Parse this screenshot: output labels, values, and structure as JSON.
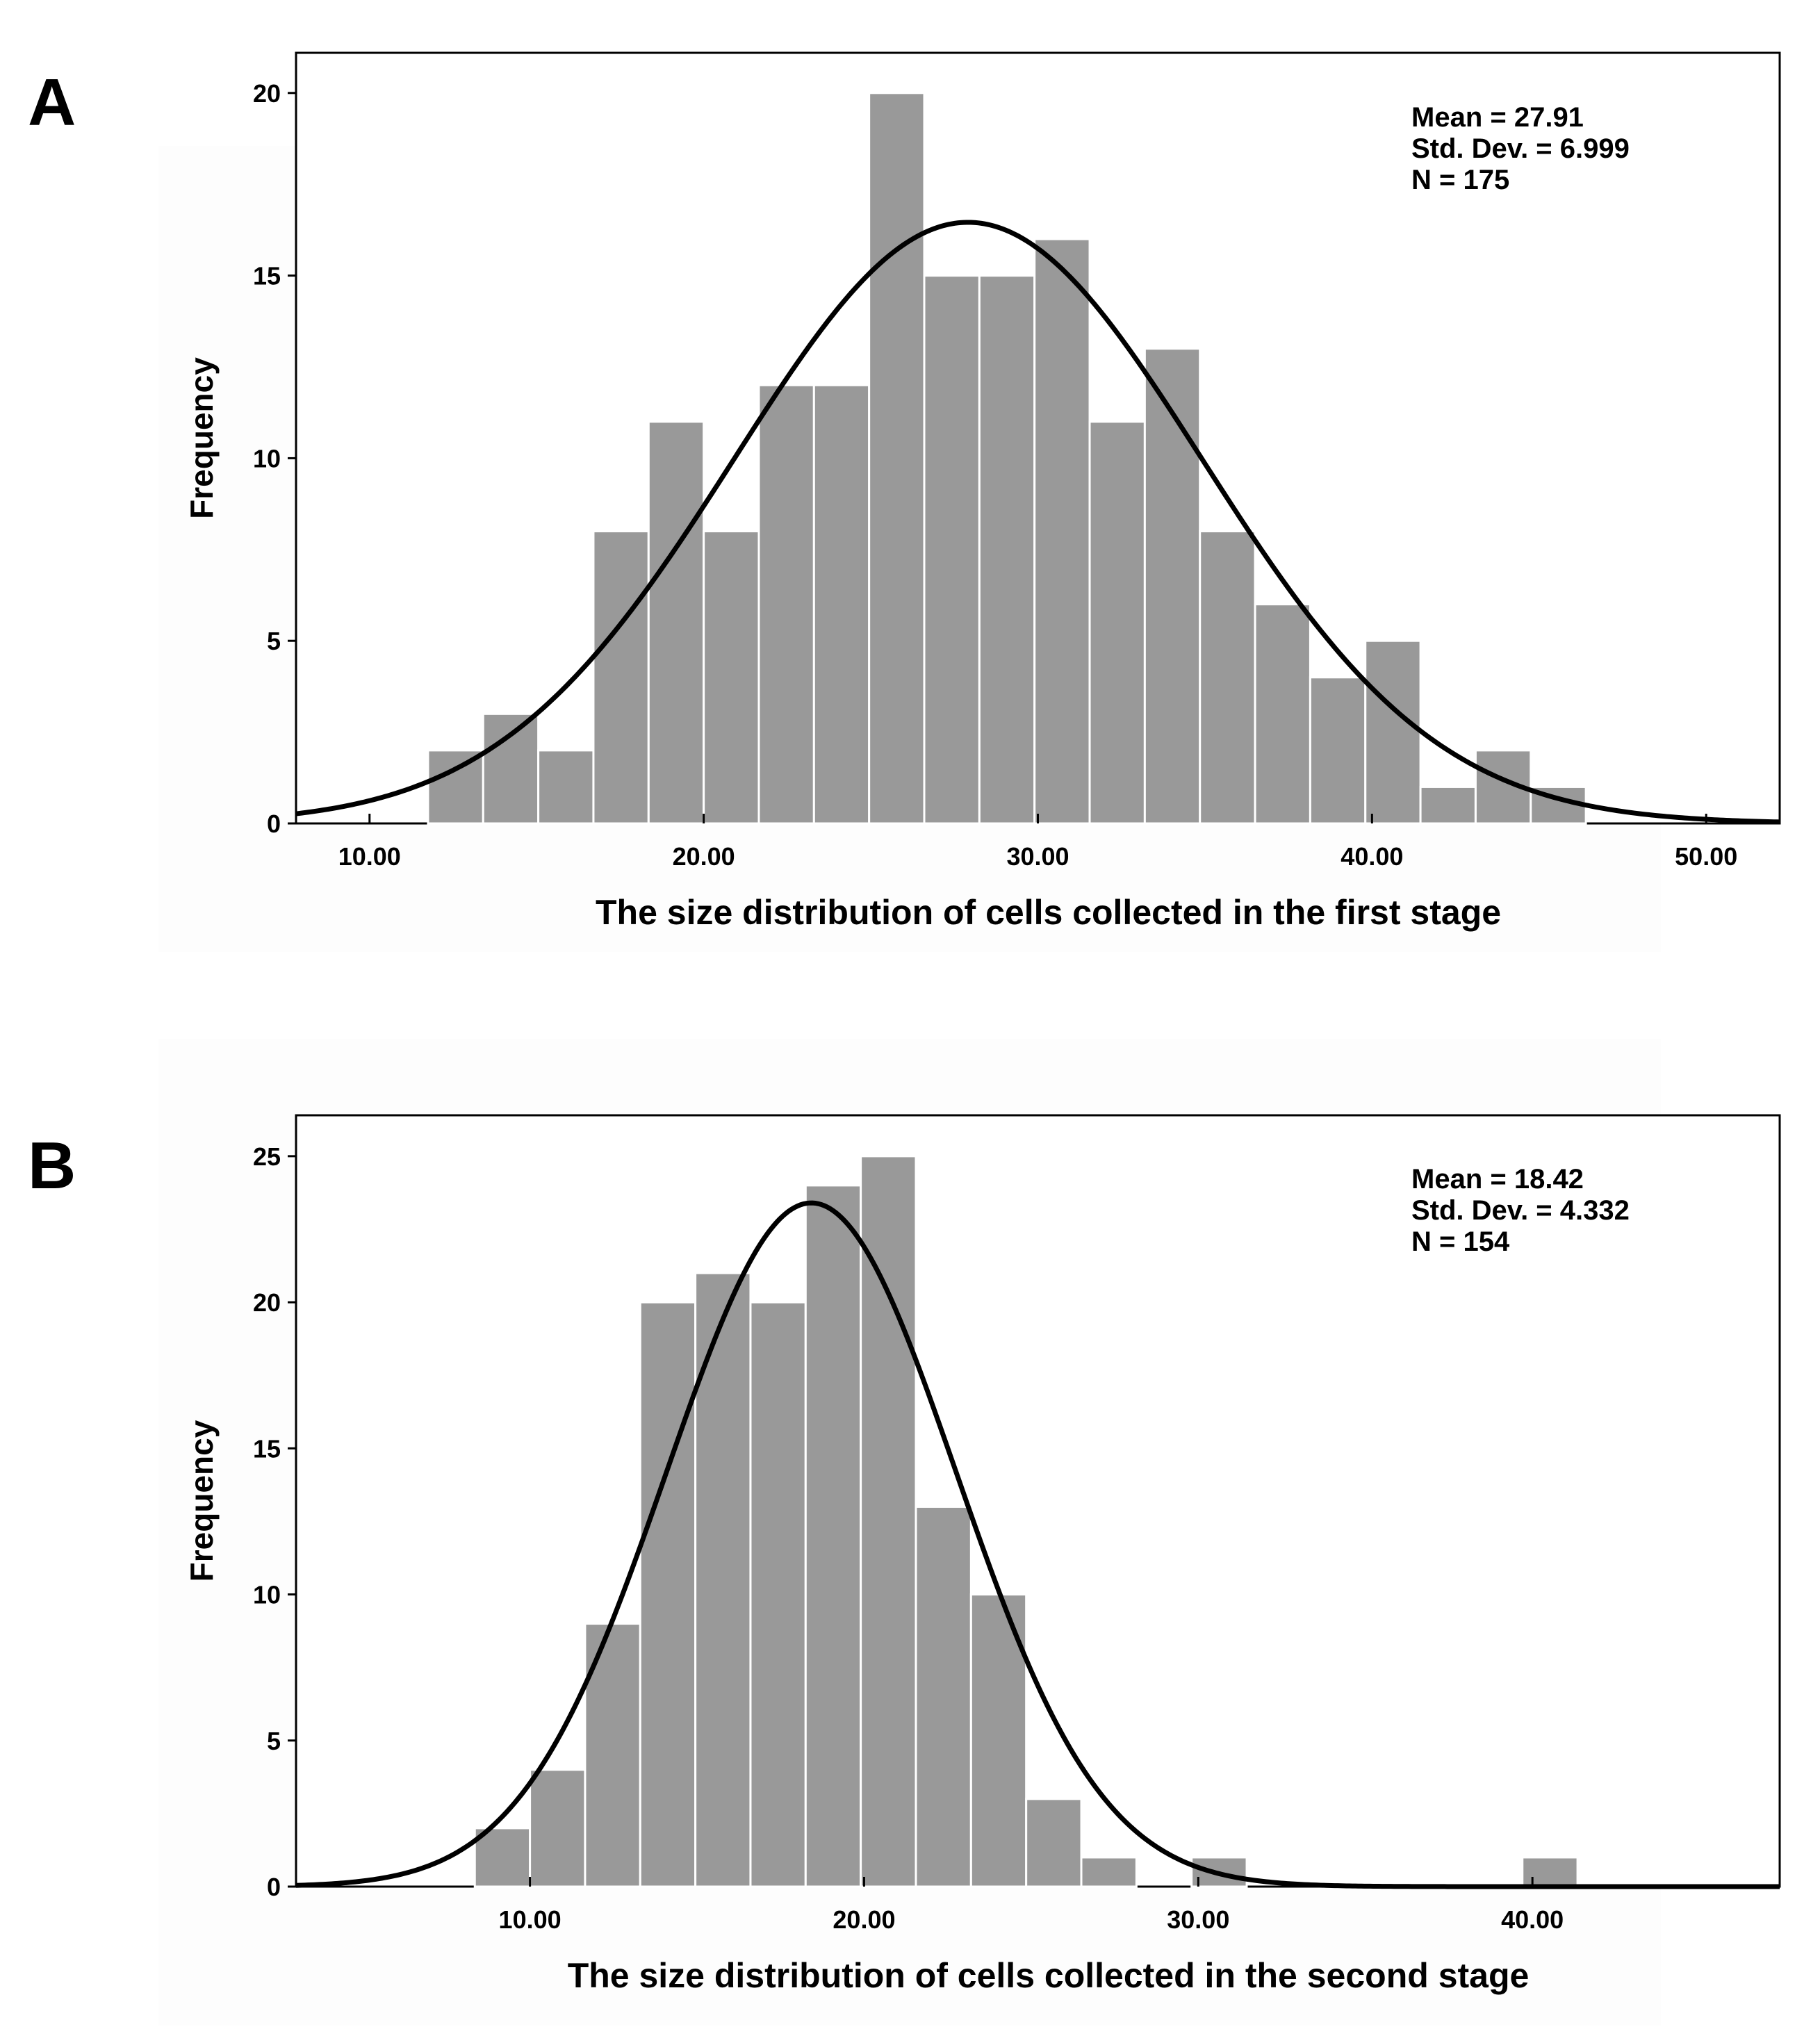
{
  "chart_data": [
    {
      "panel": "A",
      "type": "bar",
      "subtype": "histogram",
      "bin_edges": [
        11.75,
        13.4,
        15.05,
        16.7,
        18.35,
        20.0,
        21.65,
        23.3,
        24.95,
        26.6,
        28.25,
        29.9,
        31.55,
        33.2,
        34.85,
        36.5,
        38.15,
        39.8,
        41.45,
        43.1,
        44.75,
        46.4
      ],
      "values": [
        2,
        3,
        2,
        8,
        11,
        8,
        12,
        12,
        20,
        15,
        15,
        16,
        11,
        13,
        8,
        6,
        4,
        5,
        1,
        2,
        1
      ],
      "xlim": [
        7.8,
        52.2
      ],
      "ylim": [
        0,
        21.1
      ],
      "xticks": [
        10,
        20,
        30,
        40,
        50
      ],
      "xtick_labels": [
        "10.00",
        "20.00",
        "30.00",
        "40.00",
        "50.00"
      ],
      "yticks": [
        0,
        5,
        10,
        15,
        20
      ],
      "ytick_labels": [
        "0",
        "5",
        "10",
        "15",
        "20"
      ],
      "xlabel": "The size distribution of cells collected in the first stage",
      "ylabel": "Frequency",
      "bar_color": "#999999",
      "curve_color": "#000000",
      "normal_curve": {
        "mean": 27.91,
        "sd": 6.999,
        "n": 175,
        "bin_width": 1.65
      },
      "stats": [
        "Mean = 27.91",
        "Std. Dev. = 6.999",
        "N = 175"
      ]
    },
    {
      "panel": "B",
      "type": "bar",
      "subtype": "histogram",
      "bin_edges": [
        8.35,
        10.0,
        11.65,
        13.3,
        14.95,
        16.6,
        18.25,
        19.9,
        21.55,
        23.2,
        24.85,
        26.5,
        28.15,
        29.8,
        31.45,
        33.1,
        34.75,
        36.4,
        38.05,
        39.7,
        41.35
      ],
      "values": [
        2,
        4,
        9,
        20,
        21,
        20,
        24,
        25,
        13,
        10,
        3,
        1,
        0,
        1,
        0,
        0,
        0,
        0,
        0,
        1
      ],
      "xlim": [
        3.0,
        47.4
      ],
      "ylim": [
        0,
        26.4
      ],
      "xticks": [
        10,
        20,
        30,
        40
      ],
      "xtick_labels": [
        "10.00",
        "20.00",
        "30.00",
        "40.00"
      ],
      "yticks": [
        0,
        5,
        10,
        15,
        20,
        25
      ],
      "ytick_labels": [
        "0",
        "5",
        "10",
        "15",
        "20",
        "25"
      ],
      "xlabel": "The size distribution of cells collected in the second stage",
      "ylabel": "Frequency",
      "bar_color": "#999999",
      "curve_color": "#000000",
      "normal_curve": {
        "mean": 18.42,
        "sd": 4.332,
        "n": 154,
        "bin_width": 1.65
      },
      "stats": [
        "Mean = 18.42",
        "Std. Dev. = 4.332",
        "N = 154"
      ]
    }
  ]
}
